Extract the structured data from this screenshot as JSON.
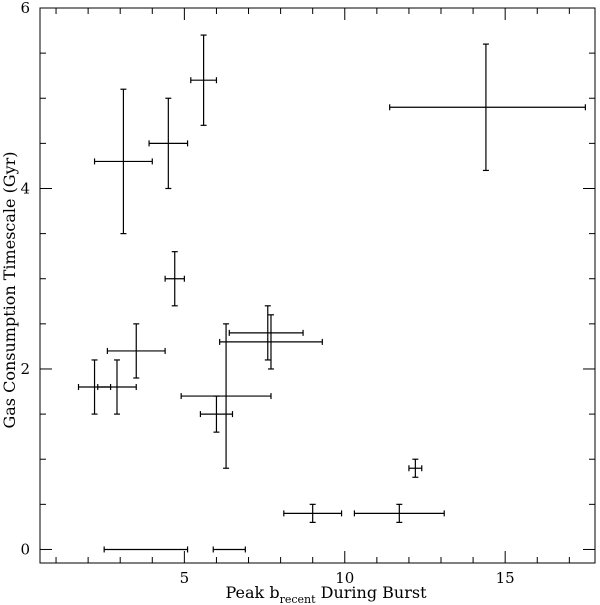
{
  "chart_data": {
    "type": "scatter",
    "title": "",
    "xlabel": "Peak b",
    "xlabel_subscript": "recent",
    "xlabel_suffix": " During Burst",
    "ylabel": "Gas Consumption Timescale (Gyr)",
    "xlim": [
      0.5,
      17.8
    ],
    "ylim": [
      -0.15,
      6.0
    ],
    "x_major_ticks": [
      5,
      10,
      15
    ],
    "x_tick_labels": [
      "5",
      "10",
      "15"
    ],
    "y_major_ticks": [
      0,
      2,
      4,
      6
    ],
    "y_tick_labels": [
      "0",
      "2",
      "4",
      "6"
    ],
    "x_minor_step": 1,
    "y_minor_step": 0.5,
    "grid": false,
    "legend": "none",
    "points": [
      {
        "x": 3.1,
        "y": 4.3,
        "xmin": 2.2,
        "xmax": 4.0,
        "ymin": 3.5,
        "ymax": 5.1
      },
      {
        "x": 4.5,
        "y": 4.5,
        "xmin": 3.9,
        "xmax": 5.1,
        "ymin": 4.0,
        "ymax": 5.0
      },
      {
        "x": 5.6,
        "y": 5.2,
        "xmin": 5.2,
        "xmax": 6.0,
        "ymin": 4.7,
        "ymax": 5.7
      },
      {
        "x": 14.4,
        "y": 4.9,
        "xmin": 11.4,
        "xmax": 17.5,
        "ymin": 4.2,
        "ymax": 5.6
      },
      {
        "x": 4.7,
        "y": 3.0,
        "xmin": 4.4,
        "xmax": 5.0,
        "ymin": 2.7,
        "ymax": 3.3
      },
      {
        "x": 2.2,
        "y": 1.8,
        "xmin": 1.7,
        "xmax": 2.7,
        "ymin": 1.5,
        "ymax": 2.1
      },
      {
        "x": 2.9,
        "y": 1.8,
        "xmin": 2.3,
        "xmax": 3.5,
        "ymin": 1.5,
        "ymax": 2.1
      },
      {
        "x": 3.5,
        "y": 2.2,
        "xmin": 2.6,
        "xmax": 4.4,
        "ymin": 1.9,
        "ymax": 2.5
      },
      {
        "x": 6.3,
        "y": 1.7,
        "xmin": 4.9,
        "xmax": 7.7,
        "ymin": 0.9,
        "ymax": 2.5
      },
      {
        "x": 6.0,
        "y": 1.5,
        "xmin": 5.5,
        "xmax": 6.5,
        "ymin": 1.3,
        "ymax": 1.7
      },
      {
        "x": 7.6,
        "y": 2.4,
        "xmin": 6.4,
        "xmax": 8.7,
        "ymin": 2.1,
        "ymax": 2.7
      },
      {
        "x": 7.7,
        "y": 2.3,
        "xmin": 6.1,
        "xmax": 9.3,
        "ymin": 2.0,
        "ymax": 2.6
      },
      {
        "x": 12.2,
        "y": 0.9,
        "xmin": 12.0,
        "xmax": 12.4,
        "ymin": 0.8,
        "ymax": 1.0
      },
      {
        "x": 9.0,
        "y": 0.4,
        "xmin": 8.1,
        "xmax": 9.9,
        "ymin": 0.3,
        "ymax": 0.5
      },
      {
        "x": 11.7,
        "y": 0.4,
        "xmin": 10.3,
        "xmax": 13.1,
        "ymin": 0.3,
        "ymax": 0.5
      },
      {
        "x": 3.8,
        "y": 0.0,
        "xmin": 2.5,
        "xmax": 5.1,
        "ymin": 0.0,
        "ymax": 0.0
      },
      {
        "x": 6.4,
        "y": 0.0,
        "xmin": 5.9,
        "xmax": 6.9,
        "ymin": 0.0,
        "ymax": 0.0
      }
    ]
  }
}
